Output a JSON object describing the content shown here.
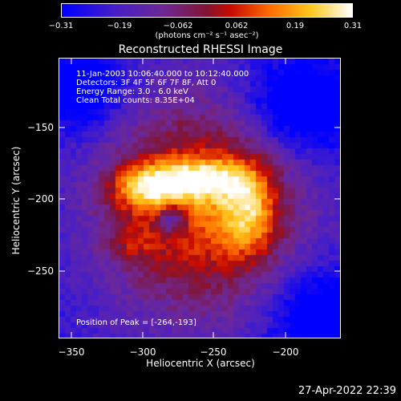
{
  "colorbar": {
    "ticks": [
      "−0.31",
      "−0.19",
      "−0.062",
      "0.062",
      "0.19",
      "0.31"
    ],
    "units": "(photons cm⁻² s⁻¹ asec⁻²)"
  },
  "title": "Reconstructed RHESSI Image",
  "info": {
    "line1": "11-Jan-2003 10:06:40.000 to 10:12:40.000",
    "line2": "Detectors: 3F 4F 5F 6F 7F 8F, Att 0",
    "line3": "Energy Range: 3.0 - 6.0 keV",
    "line4": "Clean    Total counts: 8.35E+04"
  },
  "peak": "Position of Peak = [-264,-193]",
  "x_axis": {
    "label": "Heliocentric X (arcsec)",
    "ticks": [
      "−350",
      "−300",
      "−250",
      "−200"
    ]
  },
  "y_axis": {
    "label": "Heliocentric Y (arcsec)",
    "ticks": [
      "−150",
      "−200",
      "−250"
    ]
  },
  "timestamp": "27-Apr-2022 22:39",
  "colors": {
    "background": "#000000",
    "frame": "#ffffff"
  }
}
